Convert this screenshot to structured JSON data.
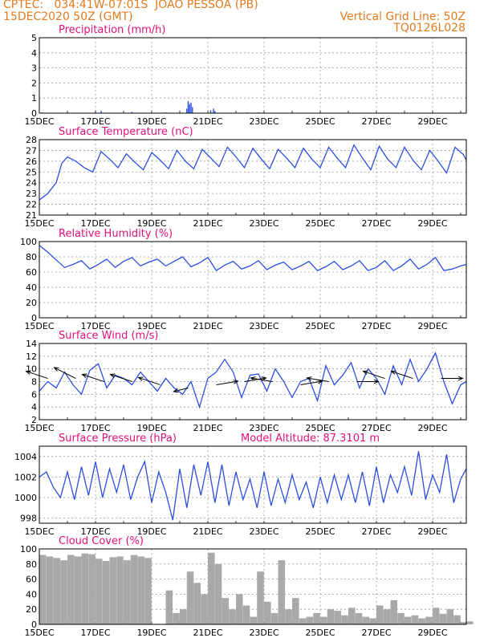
{
  "header": {
    "line1": "CPTEC:   034:41W-07:01S  JOAO PESSOA (PB)",
    "line2": "15DEC2020 50Z (GMT)",
    "grid_note": "Vertical Grid Line: 50Z",
    "model_id": "TQ0126L028"
  },
  "colors": {
    "header": "#e07b1f",
    "title": "#e0107a",
    "line": "#2a4fe0",
    "cloud": "#a9a9a9",
    "wind_arrow": "#000000"
  },
  "x_axis": {
    "start": "15DEC",
    "end": "30DEC",
    "tick_labels": [
      "15DEC",
      "17DEC",
      "19DEC",
      "21DEC",
      "23DEC",
      "25DEC",
      "27DEC",
      "29DEC"
    ],
    "tick_days": [
      0,
      2,
      4,
      6,
      8,
      10,
      12,
      14
    ],
    "days_span": 15.2
  },
  "chart_data": [
    {
      "type": "bar",
      "title": "Precipitation (mm/h)",
      "ylim": [
        0,
        5
      ],
      "yticks": [
        0,
        1,
        2,
        3,
        4,
        5
      ],
      "series": [
        {
          "x": [
            0.1,
            2.0,
            2.2,
            3.3,
            4.5,
            5.25,
            5.3,
            5.35,
            5.4,
            5.45,
            6.1,
            6.2,
            6.25,
            7.4,
            7.8,
            12.7
          ],
          "y": [
            0.05,
            0.1,
            0.15,
            0.08,
            0.05,
            0.3,
            0.8,
            0.6,
            0.7,
            0.4,
            0.2,
            0.3,
            0.15,
            0.05,
            0.05,
            0.03
          ]
        }
      ]
    },
    {
      "type": "line",
      "title": "Surface Temperature (nC)",
      "ylim": [
        21,
        28
      ],
      "yticks": [
        21,
        22,
        23,
        24,
        25,
        26,
        27,
        28
      ],
      "series": [
        {
          "x": [
            0,
            0.3,
            0.6,
            0.8,
            1.0,
            1.3,
            1.6,
            1.9,
            2.2,
            2.5,
            2.8,
            3.1,
            3.4,
            3.7,
            4.0,
            4.3,
            4.6,
            4.9,
            5.2,
            5.5,
            5.8,
            6.1,
            6.4,
            6.7,
            7.0,
            7.3,
            7.6,
            7.9,
            8.2,
            8.5,
            8.8,
            9.1,
            9.4,
            9.7,
            10.0,
            10.3,
            10.6,
            10.9,
            11.2,
            11.5,
            11.8,
            12.1,
            12.4,
            12.7,
            13.0,
            13.3,
            13.6,
            13.9,
            14.2,
            14.5,
            14.8,
            15.1,
            15.2
          ],
          "y": [
            22.4,
            23.0,
            24.0,
            25.8,
            26.4,
            26.0,
            25.4,
            25.0,
            26.9,
            26.2,
            25.4,
            26.7,
            25.9,
            25.2,
            26.8,
            26.1,
            25.3,
            27.0,
            26.0,
            25.3,
            27.1,
            26.3,
            25.5,
            27.3,
            26.4,
            25.4,
            27.2,
            26.2,
            25.3,
            27.1,
            26.3,
            25.4,
            27.2,
            26.2,
            25.4,
            27.3,
            26.3,
            25.4,
            27.5,
            26.3,
            25.2,
            27.4,
            26.2,
            25.4,
            27.3,
            26.1,
            25.2,
            27.0,
            26.0,
            24.9,
            27.3,
            26.6,
            26.1
          ]
        }
      ]
    },
    {
      "type": "line",
      "title": "Relative Humidity (%)",
      "ylim": [
        0,
        100
      ],
      "yticks": [
        0,
        20,
        40,
        60,
        80,
        100
      ],
      "series": [
        {
          "x": [
            0,
            0.3,
            0.6,
            0.9,
            1.2,
            1.5,
            1.8,
            2.1,
            2.4,
            2.7,
            3.0,
            3.3,
            3.6,
            3.9,
            4.2,
            4.5,
            4.8,
            5.1,
            5.4,
            5.7,
            6.0,
            6.3,
            6.6,
            6.9,
            7.2,
            7.5,
            7.8,
            8.1,
            8.4,
            8.7,
            9.0,
            9.3,
            9.6,
            9.9,
            10.2,
            10.5,
            10.8,
            11.1,
            11.4,
            11.7,
            12.0,
            12.3,
            12.6,
            12.9,
            13.2,
            13.5,
            13.8,
            14.1,
            14.4,
            14.7,
            15.0,
            15.2
          ],
          "y": [
            95,
            86,
            76,
            66,
            70,
            75,
            64,
            70,
            77,
            66,
            74,
            79,
            68,
            73,
            77,
            68,
            74,
            80,
            67,
            72,
            79,
            62,
            69,
            74,
            64,
            68,
            75,
            63,
            69,
            73,
            63,
            68,
            74,
            62,
            67,
            74,
            63,
            68,
            75,
            62,
            66,
            75,
            62,
            68,
            77,
            64,
            70,
            79,
            62,
            64,
            68,
            70
          ]
        }
      ]
    },
    {
      "type": "line",
      "title": "Surface Wind (m/s)",
      "ylim": [
        2,
        14
      ],
      "yticks": [
        2,
        4,
        6,
        8,
        10,
        12,
        14
      ],
      "series": [
        {
          "x": [
            0,
            0.3,
            0.6,
            0.9,
            1.2,
            1.5,
            1.8,
            2.1,
            2.4,
            2.7,
            3.0,
            3.3,
            3.6,
            3.9,
            4.2,
            4.5,
            4.8,
            5.1,
            5.4,
            5.7,
            6.0,
            6.3,
            6.6,
            6.9,
            7.2,
            7.5,
            7.8,
            8.1,
            8.4,
            8.7,
            9.0,
            9.3,
            9.6,
            9.9,
            10.2,
            10.5,
            10.8,
            11.1,
            11.4,
            11.7,
            12.0,
            12.3,
            12.6,
            12.9,
            13.2,
            13.5,
            13.8,
            14.1,
            14.4,
            14.7,
            15.0,
            15.2
          ],
          "y": [
            6.5,
            8.0,
            7.0,
            9.5,
            7.5,
            6.0,
            9.8,
            10.8,
            7.0,
            9.0,
            8.5,
            7.5,
            9.5,
            8.0,
            6.5,
            8.5,
            7.0,
            6.0,
            8.0,
            4.0,
            8.5,
            9.5,
            11.5,
            9.5,
            5.5,
            9.0,
            9.2,
            6.5,
            10.0,
            8.0,
            5.5,
            8.0,
            8.5,
            5.0,
            10.5,
            7.5,
            9.0,
            11.0,
            7.0,
            10.0,
            8.5,
            6.0,
            10.5,
            7.5,
            11.5,
            8.0,
            10.0,
            12.5,
            8.0,
            4.5,
            7.5,
            8.0
          ]
        }
      ],
      "wind_vectors": {
        "x": [
          0.3,
          1.3,
          2.3,
          3.3,
          4.3,
          5.3,
          6.3,
          7.3,
          8.3,
          9.3,
          10.3,
          11.3,
          12.3,
          13.3,
          14.3
        ],
        "y": [
          8.5,
          8.5,
          8.0,
          8.0,
          7.5,
          7.0,
          7.5,
          8.0,
          8.0,
          7.5,
          8.0,
          8.0,
          8.5,
          8.5,
          8.5
        ],
        "u": [
          -3.0,
          -3.0,
          -3.0,
          -3.0,
          -3.0,
          -2.0,
          3.0,
          3.0,
          -3.0,
          3.0,
          -3.0,
          3.0,
          -3.0,
          -3.0,
          3.0
        ],
        "v": [
          1.0,
          1.5,
          1.0,
          1.0,
          1.0,
          -0.5,
          0.5,
          0.5,
          0.5,
          0.5,
          0.5,
          0.0,
          1.0,
          1.0,
          0.0
        ]
      }
    },
    {
      "type": "line",
      "title": "Surface Pressure (hPa)",
      "annotation": "Model Altitude: 87.3101 m",
      "ylim": [
        997.5,
        1005
      ],
      "yticks": [
        998,
        1000,
        1002,
        1004
      ],
      "series": [
        {
          "x": [
            0,
            0.25,
            0.5,
            0.75,
            1.0,
            1.25,
            1.5,
            1.75,
            2.0,
            2.25,
            2.5,
            2.75,
            3.0,
            3.25,
            3.5,
            3.75,
            4.0,
            4.25,
            4.5,
            4.75,
            5.0,
            5.25,
            5.5,
            5.75,
            6.0,
            6.25,
            6.5,
            6.75,
            7.0,
            7.25,
            7.5,
            7.75,
            8.0,
            8.25,
            8.5,
            8.75,
            9.0,
            9.25,
            9.5,
            9.75,
            10.0,
            10.25,
            10.5,
            10.75,
            11.0,
            11.25,
            11.5,
            11.75,
            12.0,
            12.25,
            12.5,
            12.75,
            13.0,
            13.25,
            13.5,
            13.75,
            14.0,
            14.25,
            14.5,
            14.75,
            15.0,
            15.2
          ],
          "y": [
            1002.0,
            1002.5,
            1001.0,
            1000.0,
            1002.5,
            999.8,
            1003.0,
            1000.2,
            1003.5,
            1000.0,
            1002.8,
            1000.5,
            1003.2,
            999.8,
            1002.0,
            1003.5,
            999.5,
            1002.5,
            1000.5,
            997.8,
            1002.8,
            999.0,
            1003.2,
            1000.2,
            1003.5,
            999.5,
            1003.2,
            999.2,
            1002.5,
            999.8,
            1001.8,
            999.0,
            1002.5,
            999.2,
            1001.8,
            999.5,
            1002.2,
            999.8,
            1001.5,
            999.0,
            1002.0,
            999.5,
            1002.2,
            999.8,
            1002.2,
            999.5,
            1002.5,
            999.2,
            1003.0,
            999.5,
            1002.2,
            1000.5,
            1003.0,
            1000.2,
            1004.5,
            999.8,
            1002.2,
            1000.5,
            1004.2,
            999.5,
            1001.8,
            1002.8
          ]
        }
      ]
    },
    {
      "type": "area",
      "title": "Cloud Cover (%)",
      "ylim": [
        0,
        100
      ],
      "yticks": [
        0,
        20,
        40,
        60,
        80,
        100
      ],
      "series": [
        {
          "x": [
            0,
            0.25,
            0.5,
            0.75,
            1.0,
            1.25,
            1.5,
            1.75,
            2.0,
            2.25,
            2.5,
            2.75,
            3.0,
            3.25,
            3.5,
            3.75,
            4.0,
            4.25,
            4.5,
            4.75,
            5.0,
            5.25,
            5.5,
            5.75,
            6.0,
            6.25,
            6.5,
            6.75,
            7.0,
            7.25,
            7.5,
            7.75,
            8.0,
            8.25,
            8.5,
            8.75,
            9.0,
            9.25,
            9.5,
            9.75,
            10.0,
            10.25,
            10.5,
            10.75,
            11.0,
            11.25,
            11.5,
            11.75,
            12.0,
            12.25,
            12.5,
            12.75,
            13.0,
            13.25,
            13.5,
            13.75,
            14.0,
            14.25,
            14.5,
            14.75,
            15.0,
            15.2
          ],
          "y": [
            92,
            90,
            88,
            85,
            92,
            90,
            94,
            93,
            87,
            84,
            89,
            90,
            85,
            92,
            90,
            88,
            0,
            0,
            45,
            15,
            20,
            70,
            55,
            40,
            95,
            80,
            35,
            20,
            40,
            25,
            10,
            70,
            30,
            15,
            85,
            20,
            35,
            8,
            10,
            15,
            10,
            20,
            18,
            12,
            22,
            15,
            10,
            8,
            25,
            20,
            32,
            15,
            10,
            12,
            8,
            10,
            22,
            14,
            20,
            12,
            3,
            4
          ]
        }
      ]
    }
  ]
}
